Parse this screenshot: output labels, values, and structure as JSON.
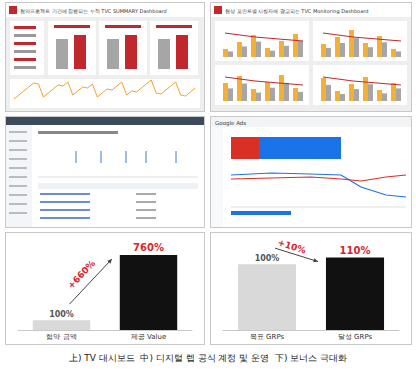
{
  "panels": {
    "top_left": {
      "title": "협약프로젝트 기간에 집행되는 누적 TVC SUMMARY Dashboard"
    },
    "top_right": {
      "title": "협상 포인트별 시청자에 광고되는 TVC Monitoring Dashboard"
    },
    "middle_right": {
      "title": "Google Ads"
    }
  },
  "chart_data": [
    {
      "type": "bar",
      "categories": [
        "협약 금액",
        "제공 Value"
      ],
      "values": [
        100,
        760
      ],
      "value_labels": [
        "100%",
        "760%"
      ],
      "colors": [
        "#d9d9d9",
        "#111111"
      ],
      "ylim": [
        0,
        800
      ],
      "grid": false,
      "tick_labels": "x",
      "data_labels": true,
      "annotations": [
        "+660%"
      ]
    },
    {
      "type": "bar",
      "categories": [
        "목표 GRPs",
        "달성 GRPs"
      ],
      "values": [
        100,
        110
      ],
      "value_labels": [
        "100%",
        "110%"
      ],
      "colors": [
        "#d9d9d9",
        "#111111"
      ],
      "ylim": [
        0,
        120
      ],
      "grid": false,
      "tick_labels": "x",
      "data_labels": true,
      "annotations": [
        "+10%"
      ]
    }
  ],
  "caption": "上) TV 대시보드  中) 디지털 렙 공식 계정 및 운영  下) 보너스 극대화"
}
